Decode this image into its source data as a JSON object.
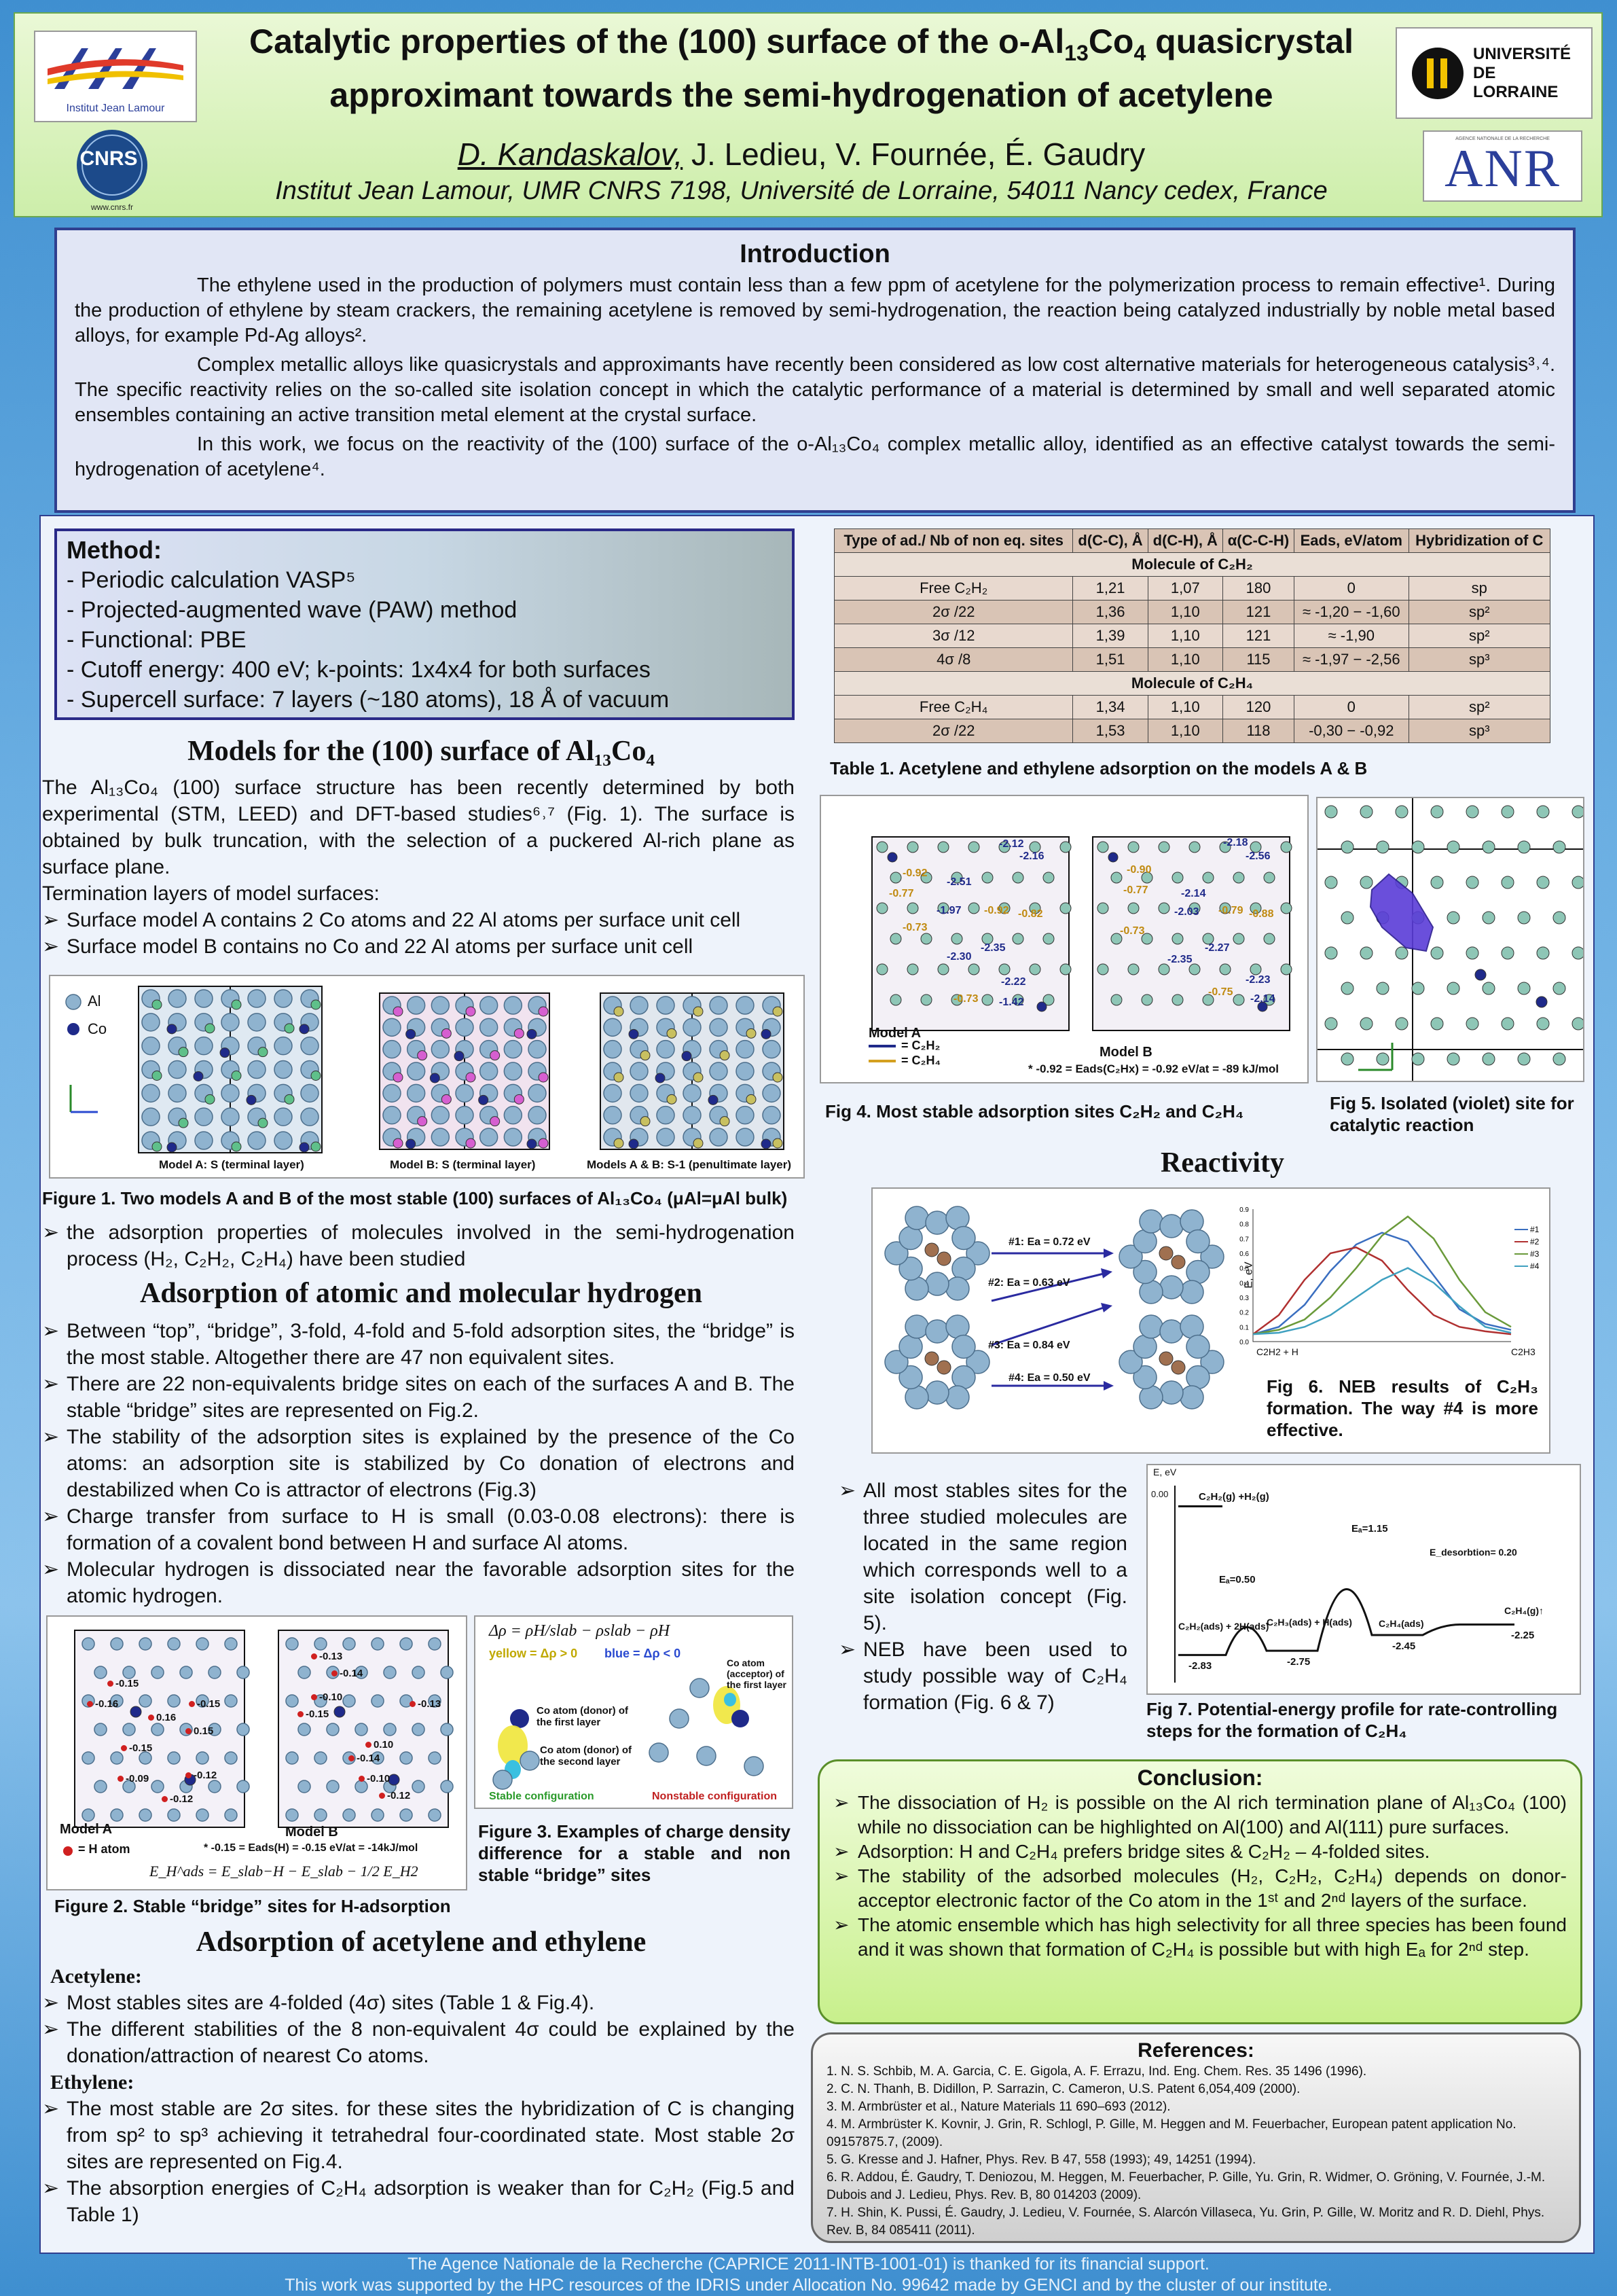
{
  "header": {
    "title_line1": "Catalytic properties of the (100) surface of the o-Al",
    "title_sub1": "13",
    "title_co": "Co",
    "title_sub2": "4",
    "title_line1_end": " quasicrystal",
    "title_line2": "approximant towards the semi-hydrogenation of acetylene",
    "author_main": "D. Kandaskalov,",
    "authors_rest": " J. Ledieu, V. Fournée, É. Gaudry",
    "affiliation": "Institut Jean Lamour, UMR CNRS 7198, Université de Lorraine, 54011 Nancy cedex, France",
    "logo_ijl": "Institut Jean Lamour",
    "logo_cnrs": "CNRS",
    "logo_cnrs_url": "www.cnrs.fr",
    "logo_ul": "UNIVERSITÉ DE LORRAINE",
    "logo_anr": "ANR",
    "logo_anr_small": "AGENCE NATIONALE DE LA RECHERCHE"
  },
  "intro": {
    "heading": "Introduction",
    "p1": "The ethylene used in the production of polymers must contain less than a few ppm of acetylene for the polymerization process to remain effective¹. During the production of ethylene by steam crackers, the remaining acetylene is removed by semi-hydrogenation, the reaction being catalyzed industrially by noble metal based alloys, for example Pd-Ag alloys².",
    "p2": "Complex metallic alloys like quasicrystals and approximants have recently been considered as low cost alternative materials for heterogeneous catalysis³˒⁴. The specific reactivity relies on the so-called site isolation concept in which the catalytic performance of a material is determined by small and well separated atomic ensembles containing an active transition metal element at the crystal surface.",
    "p3": "In this work, we focus on the reactivity of the (100) surface of the o-Al₁₃Co₄ complex metallic alloy, identified as an effective catalyst towards the semi-hydrogenation of acetylene⁴."
  },
  "method": {
    "heading": "Method:",
    "items": [
      "- Periodic calculation VASP⁵",
      "- Projected-augmented wave (PAW) method",
      "- Functional: PBE",
      "- Cutoff energy: 400 eV; k-points: 1x4x4 for both surfaces",
      "- Supercell surface: 7 layers (~180 atoms), 18 Å of vacuum"
    ]
  },
  "models": {
    "heading": "Models for the (100) surface of Al₁₃Co₄",
    "p1": "The Al₁₃Co₄ (100) surface structure has been recently determined by both experimental (STM, LEED) and DFT-based studies⁶˒⁷ (Fig. 1). The surface is obtained by bulk truncation, with the selection of a puckered Al-rich plane as surface plane.",
    "p2": "Termination layers of model surfaces:",
    "bullets": [
      "Surface model A contains 2 Co atoms and 22 Al atoms per surface unit cell",
      "Surface model B contains no Co and 22 Al atoms per  surface unit cell"
    ],
    "fig1_legend_al": "Al",
    "fig1_legend_co": "Co",
    "fig1_sub_a": "Model A: S (terminal layer)",
    "fig1_sub_b": "Model B: S (terminal layer)",
    "fig1_sub_ab": "Models A & B: S-1 (penultimate layer)",
    "fig1_caption": "Figure 1. Two models A  and B of the most stable (100) surfaces of Al₁₃Co₄ (μAl=μAl bulk)",
    "bullet_after": "the adsorption properties of molecules involved in the semi-hydrogenation process (H₂, C₂H₂, C₂H₄) have been studied"
  },
  "hydrogen": {
    "heading": "Adsorption of atomic and molecular hydrogen",
    "bullets": [
      "Between “top”, “bridge”, 3-fold, 4-fold and 5-fold adsorption sites, the “bridge” is the most stable. Altogether there are 47 non equivalent sites.",
      "There are 22 non-equivalents bridge sites on each of the surfaces A and B. The stable “bridge” sites are represented on Fig.2.",
      "The stability of the adsorption sites is explained by the presence of the Co atoms: an adsorption site is stabilized by Co donation of electrons and destabilized when Co is attractor of electrons (Fig.3)",
      "Charge transfer from surface to H is small (0.03-0.08 electrons): there is formation of a covalent bond between H and surface Al atoms.",
      "Molecular hydrogen is dissociated near the favorable adsorption sites for the atomic hydrogen."
    ],
    "fig2_model_a": "Model A",
    "fig2_model_b": "Model B",
    "fig2_h_atom": "= H atom",
    "fig2_note": "* -0.15 = Eads(H) = -0.15 eV/at = -14kJ/mol",
    "fig2_formula": "E_H^ads = E_slab−H − E_slab − 1/2 E_H2",
    "fig2_labels_a": [
      "-0.15",
      "-0.16",
      "-0.15",
      "0.16",
      "-0.15",
      "0.15",
      "-0.09",
      "-0.12",
      "-0.12"
    ],
    "fig2_labels_b": [
      "-0.13",
      "-0.14",
      "-0.10",
      "-0.15",
      "-0.13",
      "0.10",
      "-0.14",
      "-0.10",
      "-0.12"
    ],
    "fig2_caption": "Figure 2. Stable “bridge” sites for H-adsorption",
    "fig3_formula": "Δρ = ρH/slab − ρslab − ρH",
    "fig3_yellow": "yellow = Δρ > 0",
    "fig3_blue": "blue = Δρ < 0",
    "fig3_co_first": "Co atom (donor) of the first layer",
    "fig3_co_second": "Co atom (donor) of the second layer",
    "fig3_co_acceptor": "Co atom (acceptor) of the first layer",
    "fig3_stable": "Stable configuration",
    "fig3_nonstable": "Nonstable configuration",
    "fig3_caption": "Figure 3. Examples of charge density difference for a stable and non stable “bridge” sites"
  },
  "acetylene": {
    "heading": "Adsorption of acetylene and ethylene",
    "sub1": "Acetylene:",
    "bullets1": [
      "Most stables sites are 4-folded (4σ) sites (Table 1 & Fig.4).",
      "The different stabilities of the 8 non-equivalent 4σ could be explained by the donation/attraction of nearest Co atoms."
    ],
    "sub2": "Ethylene:",
    "bullets2": [
      "The most stable are 2σ sites. for these sites the hybridization of C is changing from sp² to sp³ achieving it tetrahedral four-coordinated state. Most stable 2σ sites are represented on Fig.4.",
      "The absorption energies of C₂H₄ adsorption is weaker than for C₂H₂ (Fig.5 and Table 1)"
    ]
  },
  "table1": {
    "headers": [
      "Type of ad./ Nb of non eq. sites",
      "d(C-C), Å",
      "d(C-H), Å",
      "α(C-C-H)",
      "Eads, eV/atom",
      "Hybridization of C"
    ],
    "group1": "Molecule of C₂H₂",
    "rows1": [
      [
        "Free C₂H₂",
        "1,21",
        "1,07",
        "180",
        "0",
        "sp"
      ],
      [
        "2σ  /22",
        "1,36",
        "1,10",
        "121",
        "≈ -1,20 − -1,60",
        "sp²"
      ],
      [
        "3σ  /12",
        "1,39",
        "1,10",
        "121",
        "≈ -1,90",
        "sp²"
      ],
      [
        "4σ  /8",
        "1,51",
        "1,10",
        "115",
        "≈ -1,97 − -2,56",
        "sp³"
      ]
    ],
    "group2": "Molecule of C₂H₄",
    "rows2": [
      [
        "Free C₂H₄",
        "1,34",
        "1,10",
        "120",
        "0",
        "sp²"
      ],
      [
        "2σ  /22",
        "1,53",
        "1,10",
        "118",
        "-0,30 − -0,92",
        "sp³"
      ]
    ],
    "caption": "Table 1. Acetylene and ethylene  adsorption on the models A  & B"
  },
  "fig4": {
    "labels_a": [
      "-2.12",
      "-2.16",
      "-0.92",
      "-2.51",
      "-0.77",
      "-1.97",
      "-0.92",
      "-0.82",
      "-0.73",
      "-2.35",
      "-2.30",
      "-2.22",
      "-0.73",
      "-1.42"
    ],
    "labels_b": [
      "-2.18",
      "-2.56",
      "-0.90",
      "-0.77",
      "-2.14",
      "-2.03",
      "-0.79",
      "-0.88",
      "-0.73",
      "-2.27",
      "-2.35",
      "-0.75",
      "-2.23",
      "-2.14"
    ],
    "model_a": "Model A",
    "model_b": "Model B",
    "legend1": "= C₂H₂",
    "legend2": "= C₂H₄",
    "note": "* -0.92 = Eads(C₂Hx) = -0.92 eV/at = -89 kJ/mol",
    "caption": "Fig 4. Most stable adsorption sites C₂H₂ and C₂H₄"
  },
  "fig5": {
    "caption": "Fig 5. Isolated (violet) site for catalytic reaction"
  },
  "reactivity": {
    "heading": "Reactivity",
    "paths": [
      "#1: Ea = 0.72 eV",
      "#2: Ea = 0.63 eV",
      "#3: Ea = 0.84 eV",
      "#4: Ea = 0.50 eV"
    ],
    "fig6_caption": "Fig 6. NEB results of C₂H₃ formation. The way #4 is more effective.",
    "bullets": [
      "All most stables sites for the three studied molecules are located in the same region which corresponds well to a site isolation concept (Fig. 5).",
      "NEB have been used to study possible way of C₂H₄ formation (Fig. 6 & 7)"
    ],
    "fig7_caption": "Fig 7. Potential-energy profile for rate-controlling steps for the formation of C₂H₄"
  },
  "chart_data": [
    {
      "type": "line",
      "ylabel": "E, eV",
      "ylim": [
        0,
        0.9
      ],
      "yticks": [
        0,
        0.1,
        0.2,
        0.3,
        0.4,
        0.5,
        0.6,
        0.7,
        0.8,
        0.9
      ],
      "x_start_label": "C2H2 + H",
      "x_end_label": "C2H3",
      "x": [
        0,
        1,
        2,
        3,
        4,
        5,
        6,
        7,
        8,
        9,
        10
      ],
      "series": [
        {
          "name": "#1",
          "color": "#3a6ec0",
          "values": [
            0.05,
            0.1,
            0.25,
            0.48,
            0.66,
            0.74,
            0.68,
            0.45,
            0.22,
            0.12,
            0.08
          ]
        },
        {
          "name": "#2",
          "color": "#b03030",
          "values": [
            0.05,
            0.18,
            0.42,
            0.6,
            0.64,
            0.55,
            0.35,
            0.18,
            0.1,
            0.07,
            0.05
          ]
        },
        {
          "name": "#3",
          "color": "#6a9a3a",
          "values": [
            0.05,
            0.08,
            0.15,
            0.3,
            0.5,
            0.72,
            0.85,
            0.7,
            0.42,
            0.2,
            0.1
          ]
        },
        {
          "name": "#4",
          "color": "#3fa0c0",
          "values": [
            0.05,
            0.06,
            0.1,
            0.18,
            0.3,
            0.42,
            0.5,
            0.4,
            0.24,
            0.1,
            0.06
          ]
        }
      ]
    },
    {
      "type": "line",
      "ylabel": "E, eV",
      "ylim": [
        -3.0,
        0.2
      ],
      "steps": [
        {
          "label": "C₂H₂(g) +H₂(g)",
          "value": 0.0
        },
        {
          "label": "C₂H₂(ads) + 2H(ads)",
          "value": -2.83
        },
        {
          "label": "C₂H₃(ads) + H(ads)",
          "value": -2.75
        },
        {
          "label": "C₂H₄(ads)",
          "value": -2.45
        },
        {
          "label": "C₂H₄(g)↑",
          "value": -2.25
        }
      ],
      "barriers": [
        "Eₐ=0.50",
        "Eₐ=1.15",
        "E_desorbtion= 0.20"
      ],
      "tick_zero": "0.00"
    }
  ],
  "conclusion": {
    "heading": "Conclusion:",
    "bullets": [
      "The dissociation of H₂ is possible on the Al rich termination plane of Al₁₃Co₄ (100) while no dissociation can be highlighted on Al(100)  and Al(111) pure surfaces.",
      "Adsorption: H and C₂H₄ prefers bridge sites & C₂H₂ – 4-folded sites.",
      "The stability of the adsorbed molecules (H₂, C₂H₂, C₂H₄) depends on donor-acceptor electronic factor of the Co atom in the 1ˢᵗ and 2ⁿᵈ layers of the surface.",
      "The atomic ensemble which has high selectivity for all three species has been found and it was shown that formation of C₂H₄ is possible but with high Eₐ  for 2ⁿᵈ step."
    ]
  },
  "references": {
    "heading": "References:",
    "items": [
      "1. N. S. Schbib, M. A. Garcia, C. E. Gigola, A. F. Errazu,  Ind. Eng. Chem. Res. 35 1496 (1996).",
      "2. C. N. Thanh, B. Didillon, P. Sarrazin, C. Cameron, U.S. Patent 6,054,409 (2000).",
      "3. M. Armbrüster  et al., Nature Materials 11 690–693 (2012).",
      "4. M. Armbrüster K. Kovnir, J. Grin, R. Schlogl, P. Gille, M. Heggen and M. Feuerbacher, European patent application No. 09157875.7, (2009).",
      "5. G. Kresse and J. Hafner, Phys. Rev. B 47, 558 (1993);  49, 14251 (1994).",
      "6. R. Addou, É. Gaudry, T. Deniozou, M. Heggen, M. Feuerbacher, P. Gille, Yu. Grin, R. Widmer, O. Gröning, V. Fournée, J.-M. Dubois and J. Ledieu, Phys. Rev. B, 80 014203 (2009).",
      "7. H. Shin, K. Pussi, É. Gaudry, J. Ledieu, V. Fournée, S. Alarcón Villaseca, Yu. Grin, P. Gille, W. Moritz and R. D. Diehl, Phys. Rev. B, 84 085411 (2011)."
    ]
  },
  "footer": {
    "line1": "The Agence Nationale de la Recherche (CAPRICE 2011-INTB-1001-01) is thanked for its financial support.",
    "line2": "This work was supported by the HPC resources of the IDRIS under Allocation No. 99642 made by GENCI and by the cluster of our institute."
  }
}
